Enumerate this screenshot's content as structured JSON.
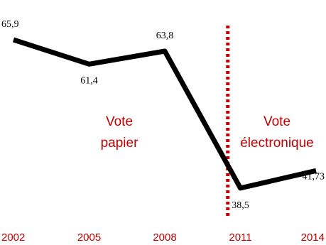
{
  "chart_data": {
    "type": "line",
    "title": "",
    "xlabel": "",
    "ylabel": "",
    "categories": [
      "2002",
      "2005",
      "2008",
      "2011",
      "2014"
    ],
    "x": [
      2002,
      2005,
      2008,
      2011,
      2014
    ],
    "series": [
      {
        "values": [
          65.9,
          61.4,
          63.8,
          38.5,
          41.73
        ],
        "color": "#000000"
      }
    ],
    "data_labels": [
      "65,9",
      "61,4",
      "63,8",
      "38,5",
      "41,73"
    ],
    "tick_color": "#c00000",
    "ylim": [
      36,
      68
    ],
    "grid": false,
    "legend": "none",
    "reference_line": {
      "x": 2010.5,
      "style": "dotted",
      "color": "#c00000"
    },
    "annotations": [
      {
        "lines": [
          "Vote",
          "papier"
        ],
        "color": "#c00000",
        "side": "left"
      },
      {
        "lines": [
          "Vote",
          "électronique"
        ],
        "color": "#c00000",
        "side": "right"
      }
    ]
  }
}
